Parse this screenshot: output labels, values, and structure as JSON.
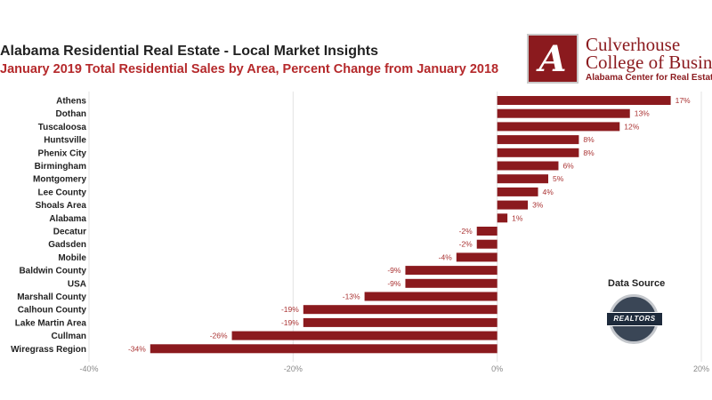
{
  "chart_data": {
    "type": "bar",
    "orientation": "horizontal",
    "title": "Alabama Residential Real Estate - Local Market Insights",
    "subtitle": "January 2019 Total Residential Sales by Area, Percent Change from January 2018",
    "categories": [
      "Athens",
      "Dothan",
      "Tuscaloosa",
      "Huntsville",
      "Phenix City",
      "Birmingham",
      "Montgomery",
      "Lee County",
      "Shoals Area",
      "Alabama",
      "Decatur",
      "Gadsden",
      "Mobile",
      "Baldwin County",
      "USA",
      "Marshall County",
      "Calhoun County",
      "Lake Martin Area",
      "Cullman",
      "Wiregrass Region"
    ],
    "values": [
      17,
      13,
      12,
      8,
      8,
      6,
      5,
      4,
      3,
      1,
      -2,
      -2,
      -4,
      -9,
      -9,
      -13,
      -19,
      -19,
      -26,
      -34
    ],
    "data_labels": [
      "17%",
      "13%",
      "12%",
      "8%",
      "8%",
      "6%",
      "5%",
      "4%",
      "3%",
      "1%",
      "-2%",
      "-2%",
      "-4%",
      "-9%",
      "-9%",
      "-13%",
      "-19%",
      "-19%",
      "-26%",
      "-34%"
    ],
    "xlim": [
      -40,
      20
    ],
    "x_ticks": [
      -40,
      -20,
      0,
      20
    ],
    "x_tick_labels": [
      "-40%",
      "-20%",
      "0%",
      "20%"
    ],
    "grid": "vertical",
    "bar_color": "#8b1a1e"
  },
  "logo": {
    "letter": "A",
    "line1": "Culverhouse",
    "line2": "College of Business",
    "line3": "Alabama Center for Real Estate"
  },
  "source": {
    "label": "Data Source",
    "badge_text": "REALTORS"
  },
  "colors": {
    "accent": "#b5292b",
    "bar": "#8b1a1e",
    "value_label": "#a33"
  }
}
